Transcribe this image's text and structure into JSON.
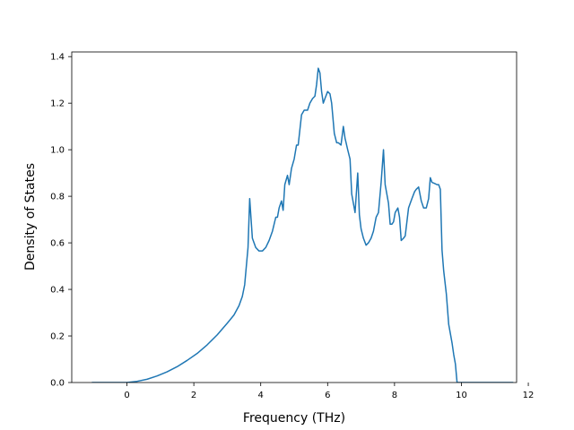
{
  "chart_data": {
    "type": "line",
    "title": "",
    "xlabel": "Frequency (THz)",
    "ylabel": "Density of States",
    "xlim": [
      -1.65,
      11.65
    ],
    "ylim": [
      0.0,
      1.42
    ],
    "xticks": [
      0,
      2,
      4,
      6,
      8,
      10,
      12
    ],
    "yticks": [
      0.0,
      0.2,
      0.4,
      0.6,
      0.8,
      1.0,
      1.2,
      1.4
    ],
    "xtick_labels": [
      "0",
      "2",
      "4",
      "6",
      "8",
      "10",
      "12"
    ],
    "ytick_labels": [
      "0.0",
      "0.2",
      "0.4",
      "0.6",
      "0.8",
      "1.0",
      "1.2",
      "1.4"
    ],
    "grid": false,
    "legend": "none",
    "series": [
      {
        "color": "#1f77b4",
        "x": [
          -1.05,
          -0.5,
          0.0,
          0.3,
          0.6,
          0.9,
          1.2,
          1.5,
          1.8,
          2.1,
          2.4,
          2.7,
          3.0,
          3.2,
          3.35,
          3.45,
          3.52,
          3.57,
          3.62,
          3.67,
          3.75,
          3.85,
          3.95,
          4.05,
          4.15,
          4.25,
          4.35,
          4.45,
          4.5,
          4.55,
          4.62,
          4.67,
          4.72,
          4.8,
          4.85,
          4.92,
          5.0,
          5.07,
          5.12,
          5.22,
          5.3,
          5.4,
          5.47,
          5.55,
          5.62,
          5.67,
          5.72,
          5.77,
          5.82,
          5.87,
          5.92,
          6.0,
          6.07,
          6.12,
          6.2,
          6.27,
          6.32,
          6.4,
          6.47,
          6.52,
          6.6,
          6.67,
          6.72,
          6.77,
          6.82,
          6.9,
          6.95,
          7.0,
          7.07,
          7.15,
          7.22,
          7.3,
          7.37,
          7.45,
          7.52,
          7.6,
          7.67,
          7.72,
          7.77,
          7.82,
          7.87,
          7.92,
          7.97,
          8.02,
          8.1,
          8.15,
          8.2,
          8.27,
          8.32,
          8.37,
          8.42,
          8.47,
          8.52,
          8.6,
          8.65,
          8.72,
          8.8,
          8.87,
          8.95,
          9.02,
          9.07,
          9.12,
          9.2,
          9.27,
          9.32,
          9.37,
          9.42,
          9.47,
          9.55,
          9.62,
          9.67,
          9.72,
          9.77,
          9.82,
          9.87,
          9.92,
          9.97,
          10.05,
          10.12,
          10.2,
          10.27,
          10.35,
          10.45,
          10.52,
          10.6,
          11.0,
          11.55
        ],
        "y": [
          0.0,
          0.0,
          0.0,
          0.005,
          0.014,
          0.028,
          0.046,
          0.068,
          0.095,
          0.125,
          0.162,
          0.205,
          0.255,
          0.29,
          0.33,
          0.37,
          0.42,
          0.5,
          0.58,
          0.79,
          0.62,
          0.58,
          0.565,
          0.565,
          0.58,
          0.61,
          0.65,
          0.71,
          0.71,
          0.75,
          0.78,
          0.74,
          0.85,
          0.89,
          0.85,
          0.92,
          0.96,
          1.02,
          1.02,
          1.15,
          1.17,
          1.17,
          1.2,
          1.22,
          1.23,
          1.28,
          1.35,
          1.33,
          1.25,
          1.2,
          1.22,
          1.25,
          1.24,
          1.2,
          1.07,
          1.03,
          1.03,
          1.02,
          1.1,
          1.05,
          1.0,
          0.96,
          0.81,
          0.77,
          0.73,
          0.9,
          0.72,
          0.66,
          0.62,
          0.59,
          0.6,
          0.62,
          0.65,
          0.71,
          0.73,
          0.86,
          1.0,
          0.85,
          0.81,
          0.77,
          0.68,
          0.68,
          0.69,
          0.73,
          0.75,
          0.71,
          0.61,
          0.62,
          0.63,
          0.69,
          0.75,
          0.77,
          0.79,
          0.82,
          0.83,
          0.84,
          0.78,
          0.75,
          0.75,
          0.79,
          0.88,
          0.86,
          0.855,
          0.85,
          0.85,
          0.83,
          0.57,
          0.48,
          0.38,
          0.25,
          0.21,
          0.17,
          0.12,
          0.08,
          0.0,
          0.0,
          0.0,
          0.0,
          0.0,
          0.0,
          0.0,
          0.0,
          0.0,
          0.0,
          0.0,
          0.0,
          0.0
        ]
      }
    ]
  }
}
